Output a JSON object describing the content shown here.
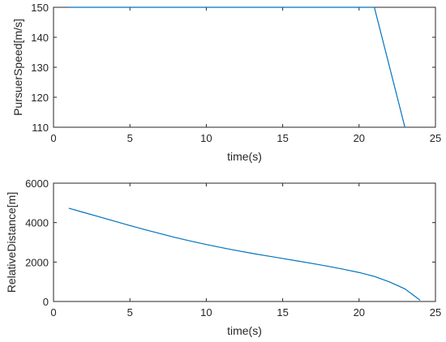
{
  "chart_data": [
    {
      "type": "line",
      "title": "",
      "xlabel": "time(s)",
      "ylabel": "PursuerSpeed[m/s]",
      "xlim": [
        0,
        25
      ],
      "ylim": [
        110,
        150
      ],
      "xticks": [
        0,
        5,
        10,
        15,
        20,
        25
      ],
      "yticks": [
        110,
        120,
        130,
        140,
        150
      ],
      "xtick_labels": [
        "0",
        "5",
        "10",
        "15",
        "20",
        "25"
      ],
      "ytick_labels": [
        "110",
        "120",
        "130",
        "140",
        "150"
      ],
      "grid": false,
      "series": [
        {
          "color": "#0072bd",
          "x": [
            1,
            21,
            23
          ],
          "y": [
            150,
            150,
            110
          ]
        }
      ]
    },
    {
      "type": "line",
      "title": "",
      "xlabel": "time(s)",
      "ylabel": "RelativeDistance[m]",
      "xlim": [
        0,
        25
      ],
      "ylim": [
        0,
        6000
      ],
      "xticks": [
        0,
        5,
        10,
        15,
        20,
        25
      ],
      "yticks": [
        0,
        2000,
        4000,
        6000
      ],
      "xtick_labels": [
        "0",
        "5",
        "10",
        "15",
        "20",
        "25"
      ],
      "ytick_labels": [
        "0",
        "2000",
        "4000",
        "6000"
      ],
      "grid": false,
      "series": [
        {
          "color": "#0072bd",
          "x": [
            1,
            2,
            3,
            4,
            5,
            6,
            7,
            8,
            9,
            10,
            11,
            12,
            13,
            14,
            15,
            16,
            17,
            18,
            19,
            20,
            21,
            22,
            23,
            24
          ],
          "y": [
            4730,
            4510,
            4290,
            4070,
            3850,
            3640,
            3440,
            3240,
            3060,
            2890,
            2730,
            2580,
            2440,
            2310,
            2180,
            2050,
            1920,
            1780,
            1630,
            1470,
            1270,
            990,
            640,
            60
          ]
        }
      ]
    }
  ]
}
